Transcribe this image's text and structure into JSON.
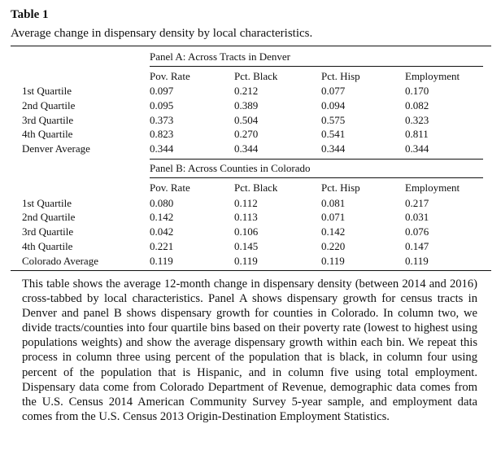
{
  "table": {
    "label": "Table 1",
    "caption": "Average change in dispensary density by local characteristics.",
    "panel_a": {
      "heading": "Panel A: Across Tracts in Denver",
      "columns": [
        "Pov. Rate",
        "Pct. Black",
        "Pct. Hisp",
        "Employment"
      ],
      "rows": [
        {
          "label": "1st Quartile",
          "values": [
            "0.097",
            "0.212",
            "0.077",
            "0.170"
          ]
        },
        {
          "label": "2nd Quartile",
          "values": [
            "0.095",
            "0.389",
            "0.094",
            "0.082"
          ]
        },
        {
          "label": "3rd Quartile",
          "values": [
            "0.373",
            "0.504",
            "0.575",
            "0.323"
          ]
        },
        {
          "label": "4th Quartile",
          "values": [
            "0.823",
            "0.270",
            "0.541",
            "0.811"
          ]
        },
        {
          "label": "Denver Average",
          "values": [
            "0.344",
            "0.344",
            "0.344",
            "0.344"
          ]
        }
      ]
    },
    "panel_b": {
      "heading": "Panel B: Across Counties in Colorado",
      "columns": [
        "Pov. Rate",
        "Pct. Black",
        "Pct. Hisp",
        "Employment"
      ],
      "rows": [
        {
          "label": "1st Quartile",
          "values": [
            "0.080",
            "0.112",
            "0.081",
            "0.217"
          ]
        },
        {
          "label": "2nd Quartile",
          "values": [
            "0.142",
            "0.113",
            "0.071",
            "0.031"
          ]
        },
        {
          "label": "3rd Quartile",
          "values": [
            "0.042",
            "0.106",
            "0.142",
            "0.076"
          ]
        },
        {
          "label": "4th Quartile",
          "values": [
            "0.221",
            "0.145",
            "0.220",
            "0.147"
          ]
        },
        {
          "label": "Colorado Average",
          "values": [
            "0.119",
            "0.119",
            "0.119",
            "0.119"
          ]
        }
      ]
    },
    "note": "This table shows the average 12-month change in dispensary density (between 2014 and 2016) cross-tabbed by local characteristics. Panel A shows dispensary growth for census tracts in Denver and panel B shows dispensary growth for counties in Colorado. In column two, we divide tracts/counties into four quartile bins based on their poverty rate (lowest to highest using populations weights) and show the average dispensary growth within each bin. We repeat this process in column three using percent of the population that is black, in column four using percent of the population that is Hispanic, and in column five using total employment. Dispensary data come from Colorado Department of Revenue, demographic data comes from the U.S. Census 2014 American Community Survey 5-year sample, and employment data comes from the U.S. Census 2013 Origin-Destination Employment Statistics."
  }
}
